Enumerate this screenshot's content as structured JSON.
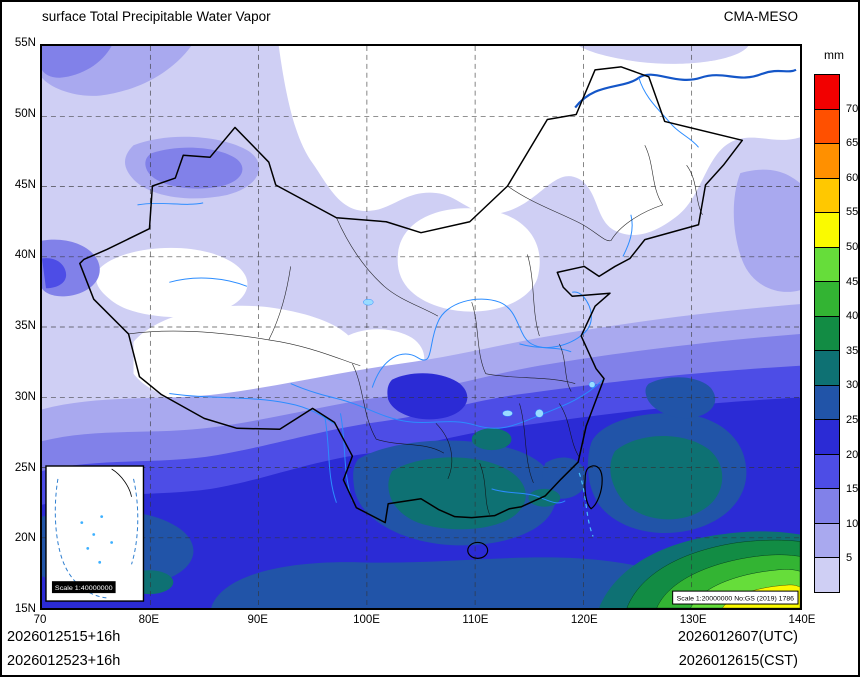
{
  "header": {
    "title": "surface Total Precipitable Water Vapor",
    "model_label": "CMA-MESO"
  },
  "colorbar": {
    "unit_label": "mm",
    "boundary_labels": [
      "70",
      "65",
      "60",
      "55",
      "50",
      "45",
      "40",
      "35",
      "30",
      "25",
      "20",
      "15",
      "10",
      "5"
    ],
    "colors_low_to_high": [
      "#cfcff4",
      "#a9a9ef",
      "#8181e9",
      "#4d4de6",
      "#2b2bd5",
      "#2154a8",
      "#0e7173",
      "#128c44",
      "#33b433",
      "#66dd3a",
      "#fafa00",
      "#ffc800",
      "#ff9000",
      "#ff5000",
      "#f20000"
    ]
  },
  "axes": {
    "lat_tick_labels": [
      "55N",
      "50N",
      "45N",
      "40N",
      "35N",
      "30N",
      "25N",
      "20N",
      "15N"
    ],
    "lon_tick_labels": [
      "70",
      "80E",
      "90E",
      "100E",
      "110E",
      "120E",
      "130E",
      "140E"
    ]
  },
  "map": {
    "inset_scale_label": "Scale 1:40000000",
    "main_scale_label": "Scale 1:20000000 No:GS (2019) 1786"
  },
  "footer": {
    "left_line1": "2026012515+16h",
    "left_line2": "2026012523+16h",
    "right_line1": "2026012607(UTC)",
    "right_line2": "2026012615(CST)"
  }
}
